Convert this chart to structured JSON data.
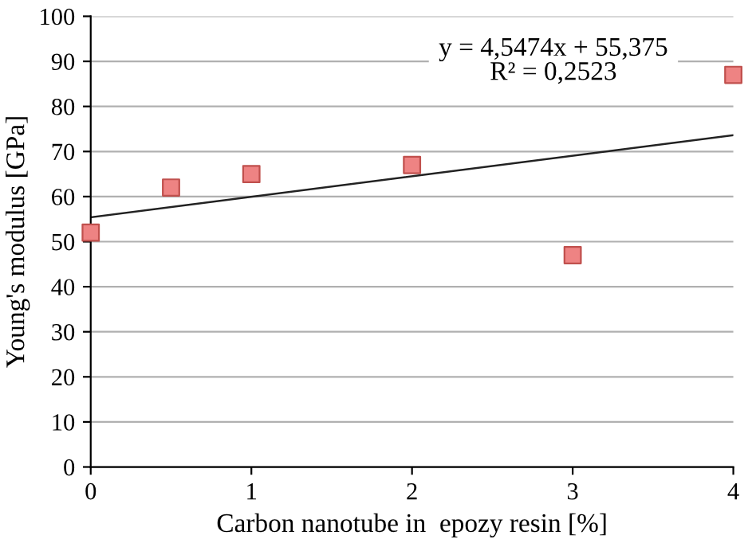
{
  "chart_data": {
    "type": "scatter",
    "xlabel": "Carbon nanotube in  epozy resin [%]",
    "ylabel": "Young's modulus [GPa]",
    "series": [
      {
        "color": "#ee8383",
        "x": [
          0,
          0.5,
          1,
          2,
          3,
          4
        ],
        "values": [
          52,
          62,
          65,
          67,
          47,
          87
        ],
        "marker": "square"
      },
      {
        "type": "line",
        "color": "#222222",
        "x": [
          0,
          4
        ],
        "values": [
          55.4,
          73.6
        ],
        "marker": "none",
        "line_style": "solid"
      }
    ],
    "annotations": [
      {
        "text": "y = 4,5474x + 55,375\nR² = 0,2523"
      }
    ],
    "xlim": [
      0,
      4
    ],
    "xticks": [
      0,
      1,
      2,
      3,
      4
    ],
    "ylim": [
      0,
      100
    ],
    "yticks": [
      0,
      10,
      20,
      30,
      40,
      50,
      60,
      70,
      80,
      90,
      100
    ],
    "grid": "y",
    "legend": false
  }
}
